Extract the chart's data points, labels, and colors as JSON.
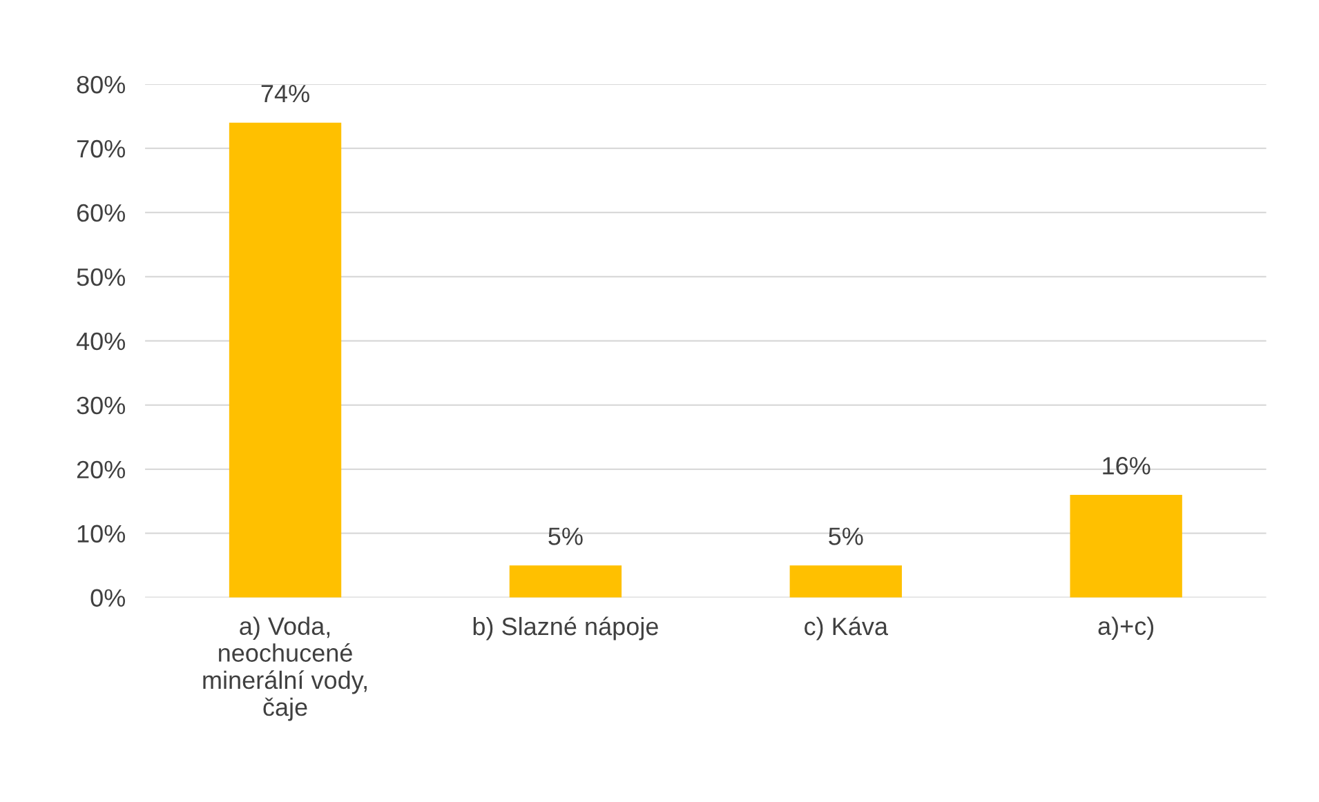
{
  "chart_data": {
    "type": "bar",
    "categories": [
      "a) Voda, neochucené minerální vody, čaje",
      "b) Slazné nápoje",
      "c) Káva",
      "a)+c)"
    ],
    "values": [
      74,
      5,
      5,
      16
    ],
    "value_labels": [
      "74%",
      "5%",
      "5%",
      "16%"
    ],
    "color": "#ffc000",
    "ylim": [
      0,
      80
    ],
    "yticks": [
      {
        "value": 0,
        "label": "0%"
      },
      {
        "value": 10,
        "label": "10%"
      },
      {
        "value": 20,
        "label": "20%"
      },
      {
        "value": 30,
        "label": "30%"
      },
      {
        "value": 40,
        "label": "40%"
      },
      {
        "value": 50,
        "label": "50%"
      },
      {
        "value": 60,
        "label": "60%"
      },
      {
        "value": 70,
        "label": "70%"
      },
      {
        "value": 80,
        "label": "80%"
      }
    ],
    "grid": "y"
  }
}
